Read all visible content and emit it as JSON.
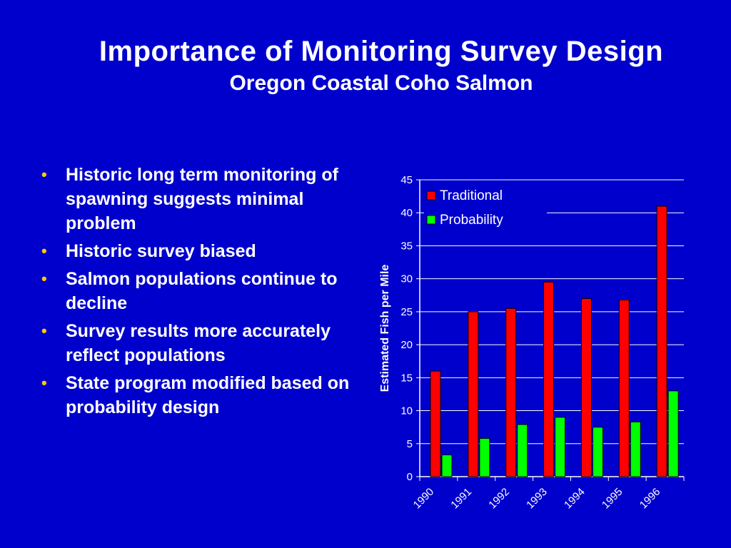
{
  "slide": {
    "title": "Importance of Monitoring Survey Design",
    "subtitle": "Oregon Coastal Coho Salmon",
    "bullets": [
      "Historic long term monitoring of spawning suggests minimal problem",
      "Historic survey biased",
      "Salmon populations continue to decline",
      "Survey results more accurately reflect populations",
      "State program modified based on probability design"
    ],
    "bullet_glyph": "•"
  },
  "colors": {
    "background": "#0000CC",
    "text": "#FFFFFF",
    "bullet": "#FFCC00",
    "traditional": "#FF0000",
    "probability": "#00FF00"
  },
  "chart_data": {
    "type": "bar",
    "categories": [
      "1990",
      "1991",
      "1992",
      "1993",
      "1994",
      "1995",
      "1996"
    ],
    "series": [
      {
        "name": "Traditional",
        "color": "#FF0000",
        "values": [
          16,
          25,
          25.5,
          29.5,
          27,
          26.8,
          41
        ]
      },
      {
        "name": "Probability",
        "color": "#00FF00",
        "values": [
          3.3,
          5.8,
          7.9,
          9,
          7.5,
          8.3,
          13
        ]
      }
    ],
    "ylabel": "Estimated Fish per Mile",
    "ylim": [
      0,
      45
    ],
    "yticks": [
      0,
      5,
      10,
      15,
      20,
      25,
      30,
      35,
      40,
      45
    ],
    "grid": true,
    "legend": "top-left inside plot"
  }
}
